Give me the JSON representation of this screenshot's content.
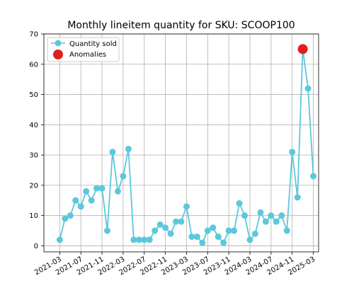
{
  "chart_data": {
    "type": "line",
    "title": "Monthly lineitem quantity for SKU: SCOOP100",
    "xlabel": "",
    "ylabel": "",
    "ylim": [
      -2,
      70
    ],
    "xlim": [
      "2020-12-01",
      "2025-04-01"
    ],
    "x_ticks": [
      "2021-03",
      "2021-07",
      "2021-11",
      "2022-03",
      "2022-07",
      "2022-11",
      "2023-03",
      "2023-07",
      "2023-11",
      "2024-03",
      "2024-07",
      "2024-11",
      "2025-03"
    ],
    "y_ticks": [
      0,
      10,
      20,
      30,
      40,
      50,
      60,
      70
    ],
    "grid": true,
    "legend_position": "top-left",
    "colors": {
      "line": "#5bc8dc",
      "anomaly": "#e0201c",
      "grid": "#b0b0b0",
      "axis": "#000000"
    },
    "series": [
      {
        "name": "Quantity sold",
        "x": [
          "2021-03",
          "2021-04",
          "2021-05",
          "2021-06",
          "2021-07",
          "2021-08",
          "2021-09",
          "2021-10",
          "2021-11",
          "2021-12",
          "2022-01",
          "2022-02",
          "2022-03",
          "2022-04",
          "2022-05",
          "2022-06",
          "2022-07",
          "2022-08",
          "2022-09",
          "2022-10",
          "2022-11",
          "2022-12",
          "2023-01",
          "2023-02",
          "2023-03",
          "2023-04",
          "2023-05",
          "2023-06",
          "2023-07",
          "2023-08",
          "2023-09",
          "2023-10",
          "2023-11",
          "2023-12",
          "2024-01",
          "2024-02",
          "2024-03",
          "2024-04",
          "2024-05",
          "2024-06",
          "2024-07",
          "2024-08",
          "2024-09",
          "2024-10",
          "2024-11",
          "2024-12",
          "2025-01",
          "2025-02",
          "2025-03"
        ],
        "values": [
          2,
          9,
          10,
          15,
          13,
          18,
          15,
          19,
          19,
          5,
          31,
          18,
          23,
          32,
          2,
          2,
          2,
          2,
          5,
          7,
          6,
          4,
          8,
          8,
          13,
          3,
          3,
          1,
          5,
          6,
          3,
          1,
          5,
          5,
          14,
          10,
          2,
          4,
          11,
          8,
          10,
          8,
          10,
          5,
          31,
          16,
          65,
          52,
          23
        ]
      },
      {
        "name": "Anomalies",
        "x": [
          "2025-01"
        ],
        "values": [
          65
        ]
      }
    ]
  }
}
